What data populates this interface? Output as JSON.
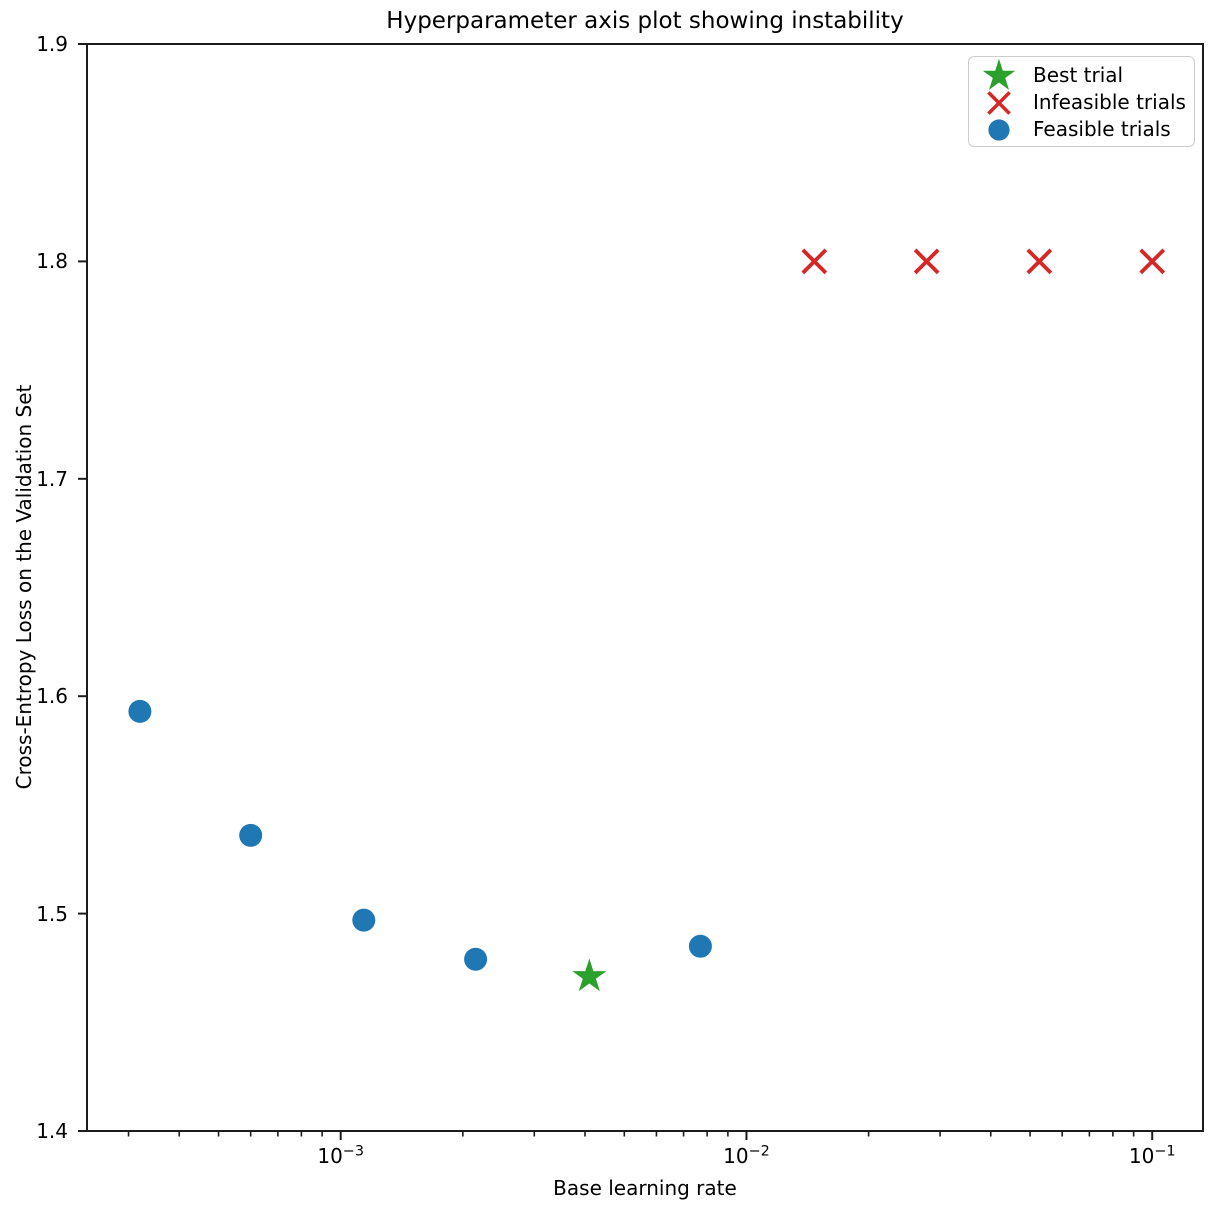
{
  "figure": {
    "kind": "matplotlib-scatter-figure",
    "background": "#ffffff"
  },
  "colors": {
    "feasible": "#1f77b4",
    "infeasible": "#d62728",
    "best": "#2ca02c",
    "spine": "#1c1c1c",
    "tick": "#1c1c1c",
    "text": "#000000",
    "legend_border": "#cccccc"
  },
  "legend": {
    "position": "upper right",
    "items": [
      {
        "label": "Best trial",
        "marker": "star",
        "color": "#2ca02c"
      },
      {
        "label": "Infeasible trials",
        "marker": "x",
        "color": "#d62728"
      },
      {
        "label": "Feasible trials",
        "marker": "circle",
        "color": "#1f77b4"
      }
    ]
  },
  "chart_data": {
    "type": "scatter",
    "title": "Hyperparameter axis plot showing instability",
    "xlabel": "Base learning rate",
    "ylabel": "Cross-Entropy Loss on the Validation Set",
    "x_scale": "log10",
    "xlim": [
      0.000237,
      0.1334
    ],
    "ylim": [
      1.4,
      1.9
    ],
    "grid": false,
    "x_ticks": [
      {
        "value": 0.001,
        "base": "10",
        "exp": "−3"
      },
      {
        "value": 0.01,
        "base": "10",
        "exp": "−2"
      },
      {
        "value": 0.1,
        "base": "10",
        "exp": "−1"
      }
    ],
    "y_ticks": [
      {
        "value": 1.4,
        "label": "1.4"
      },
      {
        "value": 1.5,
        "label": "1.5"
      },
      {
        "value": 1.6,
        "label": "1.6"
      },
      {
        "value": 1.7,
        "label": "1.7"
      },
      {
        "value": 1.8,
        "label": "1.8"
      },
      {
        "value": 1.9,
        "label": "1.9"
      }
    ],
    "series": [
      {
        "name": "Feasible trials",
        "marker": "circle",
        "color": "#1f77b4",
        "points": [
          [
            0.00032,
            1.593
          ],
          [
            0.0006,
            1.536
          ],
          [
            0.00114,
            1.497
          ],
          [
            0.00215,
            1.479
          ],
          [
            0.0077,
            1.485
          ]
        ]
      },
      {
        "name": "Best trial",
        "marker": "star",
        "color": "#2ca02c",
        "points": [
          [
            0.0041,
            1.471
          ]
        ]
      },
      {
        "name": "Infeasible trials",
        "marker": "x",
        "color": "#d62728",
        "points": [
          [
            0.0147,
            1.8
          ],
          [
            0.0278,
            1.8
          ],
          [
            0.0527,
            1.8
          ],
          [
            0.1,
            1.8
          ]
        ]
      }
    ]
  }
}
